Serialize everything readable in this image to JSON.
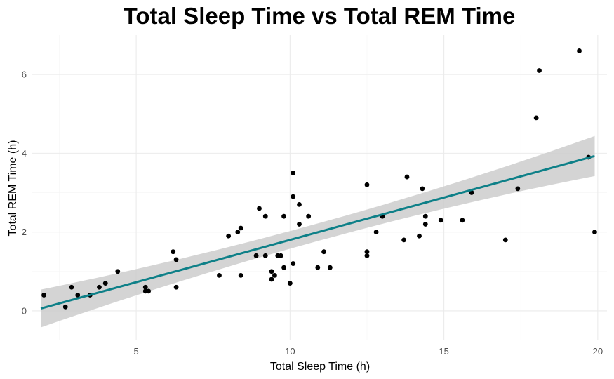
{
  "chart_data": {
    "type": "scatter",
    "title": "Total Sleep Time vs Total REM Time",
    "xlabel": "Total Sleep Time (h)",
    "ylabel": "Total REM Time (h)",
    "xlim": [
      1.6,
      20.3
    ],
    "ylim": [
      -0.75,
      7.0
    ],
    "x_ticks": [
      5,
      10,
      15,
      20
    ],
    "y_ticks": [
      0,
      2,
      4,
      6
    ],
    "x_tick_labels": [
      "5",
      "10",
      "15",
      "20"
    ],
    "y_tick_labels": [
      "0",
      "2",
      "4",
      "6"
    ],
    "grid": true,
    "legend": "none",
    "points": [
      {
        "x": 2.0,
        "y": 0.4
      },
      {
        "x": 2.7,
        "y": 0.1
      },
      {
        "x": 2.9,
        "y": 0.6
      },
      {
        "x": 3.1,
        "y": 0.4
      },
      {
        "x": 3.5,
        "y": 0.4
      },
      {
        "x": 3.8,
        "y": 0.6
      },
      {
        "x": 4.0,
        "y": 0.7
      },
      {
        "x": 4.4,
        "y": 1.0
      },
      {
        "x": 5.3,
        "y": 0.6
      },
      {
        "x": 5.3,
        "y": 0.5
      },
      {
        "x": 5.4,
        "y": 0.5
      },
      {
        "x": 6.2,
        "y": 1.5
      },
      {
        "x": 6.3,
        "y": 1.3
      },
      {
        "x": 6.3,
        "y": 0.6
      },
      {
        "x": 7.7,
        "y": 0.9
      },
      {
        "x": 8.0,
        "y": 1.9
      },
      {
        "x": 8.3,
        "y": 2.0
      },
      {
        "x": 8.4,
        "y": 2.1
      },
      {
        "x": 8.4,
        "y": 0.9
      },
      {
        "x": 8.9,
        "y": 1.4
      },
      {
        "x": 9.0,
        "y": 2.6
      },
      {
        "x": 9.2,
        "y": 2.4
      },
      {
        "x": 9.2,
        "y": 1.4
      },
      {
        "x": 9.4,
        "y": 1.0
      },
      {
        "x": 9.4,
        "y": 0.8
      },
      {
        "x": 9.5,
        "y": 0.9
      },
      {
        "x": 9.6,
        "y": 1.4
      },
      {
        "x": 9.7,
        "y": 1.4
      },
      {
        "x": 9.8,
        "y": 2.4
      },
      {
        "x": 9.8,
        "y": 1.1
      },
      {
        "x": 10.0,
        "y": 0.7
      },
      {
        "x": 10.1,
        "y": 3.5
      },
      {
        "x": 10.1,
        "y": 2.9
      },
      {
        "x": 10.1,
        "y": 1.2
      },
      {
        "x": 10.3,
        "y": 2.7
      },
      {
        "x": 10.3,
        "y": 2.2
      },
      {
        "x": 10.6,
        "y": 2.4
      },
      {
        "x": 10.9,
        "y": 1.1
      },
      {
        "x": 11.1,
        "y": 1.5
      },
      {
        "x": 11.3,
        "y": 1.1
      },
      {
        "x": 12.5,
        "y": 3.2
      },
      {
        "x": 12.5,
        "y": 1.5
      },
      {
        "x": 12.5,
        "y": 1.4
      },
      {
        "x": 12.8,
        "y": 2.0
      },
      {
        "x": 13.0,
        "y": 2.4
      },
      {
        "x": 13.7,
        "y": 1.8
      },
      {
        "x": 13.8,
        "y": 3.4
      },
      {
        "x": 14.2,
        "y": 1.9
      },
      {
        "x": 14.3,
        "y": 3.1
      },
      {
        "x": 14.4,
        "y": 2.4
      },
      {
        "x": 14.4,
        "y": 2.2
      },
      {
        "x": 14.9,
        "y": 2.3
      },
      {
        "x": 15.6,
        "y": 2.3
      },
      {
        "x": 15.9,
        "y": 3.0
      },
      {
        "x": 17.0,
        "y": 1.8
      },
      {
        "x": 17.4,
        "y": 3.1
      },
      {
        "x": 18.0,
        "y": 4.9
      },
      {
        "x": 18.1,
        "y": 6.1
      },
      {
        "x": 19.4,
        "y": 6.6
      },
      {
        "x": 19.7,
        "y": 3.9
      },
      {
        "x": 19.9,
        "y": 2.0
      }
    ],
    "trend_line": {
      "type": "linear",
      "x_range": [
        1.9,
        19.9
      ],
      "y_at_range": [
        0.06,
        3.93
      ],
      "ci_lower": [
        -0.42,
        3.42
      ],
      "ci_upper": [
        0.54,
        4.44
      ]
    },
    "colors": {
      "point": "#000000",
      "trend_line": "#0e8088",
      "ci_band": "#cccccc",
      "panel_background": "#ffffff",
      "grid": "#ebebeb"
    }
  }
}
